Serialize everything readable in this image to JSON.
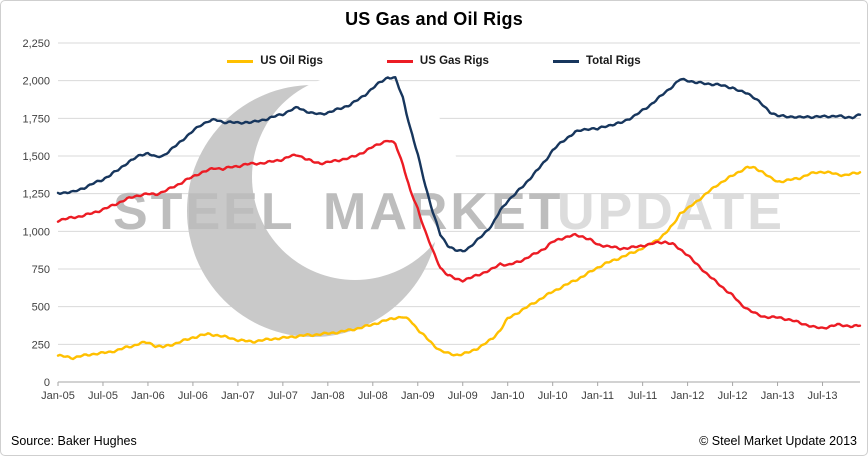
{
  "frame": {
    "title": "US Gas and Oil Rigs",
    "source": "Source: Baker Hughes",
    "copyright": "© Steel Market Update 2013"
  },
  "watermark": {
    "words": [
      "STEEL",
      "MARKET",
      "UPDATE"
    ]
  },
  "chart_data": {
    "type": "line",
    "title": "US Gas and Oil Rigs",
    "x_unit": "month",
    "x_start_label": "Jan-05",
    "x_end_label": "Dec-13",
    "x_tick_labels": [
      "Jan-05",
      "Jul-05",
      "Jan-06",
      "Jul-06",
      "Jan-07",
      "Jul-07",
      "Jan-08",
      "Jul-08",
      "Jan-09",
      "Jul-09",
      "Jan-10",
      "Jul-10",
      "Jan-11",
      "Jul-11",
      "Jan-12",
      "Jul-12",
      "Jan-13",
      "Jul-13"
    ],
    "x_tick_indices": [
      0,
      6,
      12,
      18,
      24,
      30,
      36,
      42,
      48,
      54,
      60,
      66,
      72,
      78,
      84,
      90,
      96,
      102
    ],
    "ylim": [
      0,
      2250
    ],
    "y_ticks": [
      0,
      250,
      500,
      750,
      1000,
      1250,
      1500,
      1750,
      2000,
      2250
    ],
    "grid": "horizontal",
    "legend_position": "top-inside",
    "series": [
      {
        "name": "US Oil Rigs",
        "color": "#FFC000",
        "values": [
          175,
          168,
          160,
          172,
          180,
          188,
          192,
          200,
          212,
          228,
          240,
          258,
          262,
          240,
          232,
          245,
          262,
          278,
          295,
          308,
          318,
          312,
          302,
          292,
          278,
          272,
          268,
          275,
          282,
          288,
          292,
          298,
          305,
          310,
          312,
          318,
          322,
          328,
          336,
          345,
          356,
          368,
          382,
          398,
          412,
          426,
          432,
          408,
          350,
          300,
          250,
          210,
          190,
          180,
          185,
          200,
          225,
          255,
          290,
          345,
          420,
          450,
          480,
          510,
          540,
          570,
          600,
          625,
          650,
          675,
          700,
          730,
          760,
          785,
          805,
          825,
          845,
          865,
          890,
          915,
          945,
          985,
          1040,
          1120,
          1150,
          1190,
          1230,
          1270,
          1310,
          1340,
          1370,
          1400,
          1425,
          1420,
          1395,
          1355,
          1330,
          1335,
          1345,
          1355,
          1375,
          1390,
          1395,
          1388,
          1378,
          1372,
          1382,
          1392
        ]
      },
      {
        "name": "US Gas Rigs",
        "color": "#EC1C24",
        "values": [
          1072,
          1082,
          1092,
          1100,
          1112,
          1128,
          1145,
          1165,
          1188,
          1210,
          1228,
          1242,
          1248,
          1245,
          1262,
          1285,
          1310,
          1338,
          1362,
          1388,
          1405,
          1420,
          1415,
          1425,
          1432,
          1445,
          1448,
          1452,
          1458,
          1468,
          1478,
          1498,
          1508,
          1482,
          1462,
          1452,
          1458,
          1468,
          1478,
          1488,
          1508,
          1532,
          1560,
          1585,
          1602,
          1582,
          1448,
          1268,
          1150,
          1000,
          870,
          760,
          710,
          685,
          675,
          690,
          710,
          730,
          750,
          785,
          775,
          790,
          810,
          835,
          860,
          890,
          930,
          950,
          965,
          975,
          965,
          945,
          910,
          905,
          895,
          885,
          890,
          895,
          905,
          915,
          925,
          930,
          915,
          880,
          845,
          790,
          745,
          700,
          655,
          615,
          575,
          520,
          485,
          455,
          435,
          430,
          428,
          420,
          408,
          392,
          378,
          362,
          358,
          368,
          380,
          376,
          368,
          374
        ]
      },
      {
        "name": "Total Rigs",
        "color": "#17365D",
        "values": [
          1255,
          1258,
          1260,
          1280,
          1300,
          1324,
          1345,
          1373,
          1408,
          1446,
          1476,
          1508,
          1518,
          1493,
          1502,
          1538,
          1580,
          1624,
          1665,
          1704,
          1731,
          1740,
          1725,
          1725,
          1718,
          1725,
          1724,
          1735,
          1748,
          1764,
          1778,
          1804,
          1821,
          1800,
          1782,
          1778,
          1788,
          1804,
          1822,
          1841,
          1872,
          1908,
          1950,
          1991,
          2022,
          2016,
          1888,
          1684,
          1508,
          1308,
          1128,
          978,
          908,
          873,
          868,
          898,
          943,
          993,
          1048,
          1138,
          1203,
          1248,
          1298,
          1353,
          1408,
          1468,
          1538,
          1583,
          1623,
          1658,
          1673,
          1683,
          1678,
          1698,
          1708,
          1718,
          1743,
          1768,
          1803,
          1838,
          1878,
          1923,
          1963,
          2008,
          2003,
          1988,
          1983,
          1978,
          1973,
          1963,
          1953,
          1928,
          1918,
          1883,
          1838,
          1793,
          1766,
          1763,
          1761,
          1755,
          1761,
          1760,
          1761,
          1764,
          1766,
          1756,
          1758,
          1774
        ]
      }
    ]
  }
}
